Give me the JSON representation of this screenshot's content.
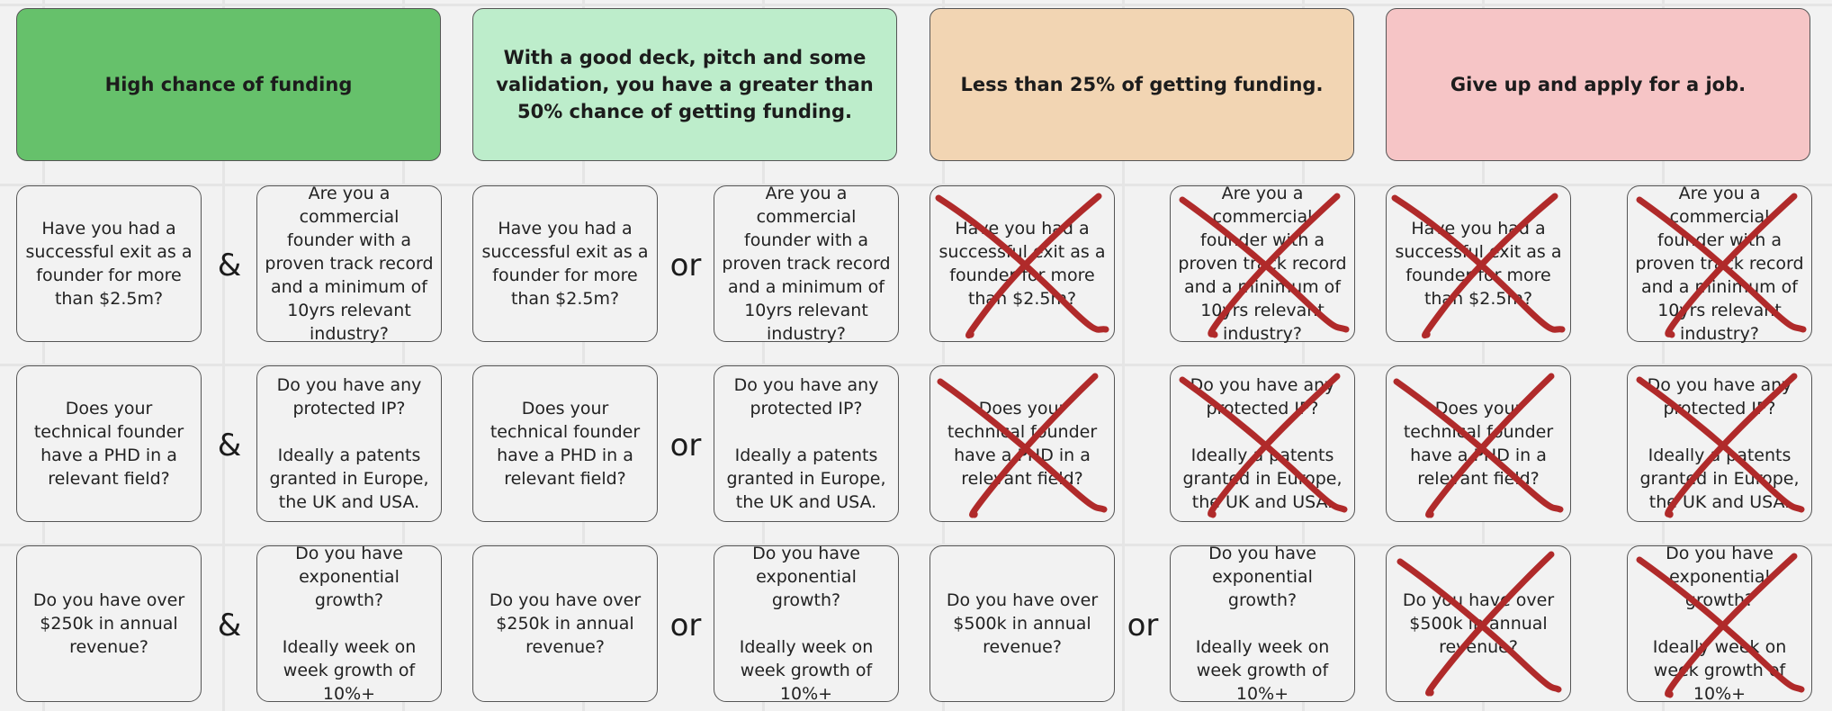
{
  "colors": {
    "col1_header": "#66c16b",
    "col2_header": "#bdedcb",
    "col3_header": "#f2d5b3",
    "col4_header": "#f6c5c6",
    "cross": "#b02a2a",
    "background": "#f2f2f2"
  },
  "columns": [
    {
      "header": "High chance of funding",
      "connector": "&",
      "rows": [
        {
          "left": "Have you had a successful exit as a founder for more than $2.5m?",
          "right": "Are you a commercial founder with a proven track record and a minimum of 10yrs relevant industry?"
        },
        {
          "left": "Does your technical founder have a PHD in a relevant field?",
          "right": "Do you have any protected IP?\n\nIdeally a patents granted in Europe, the UK and USA."
        },
        {
          "left": "Do you have over $250k in annual revenue?",
          "right": "Do you have exponential growth?\n\nIdeally week on week growth of 10%+"
        }
      ]
    },
    {
      "header": "With a good deck, pitch and some validation, you have a greater than 50% chance of getting funding.",
      "connector": "or",
      "rows": [
        {
          "left": "Have you had a successful exit as a founder for more than $2.5m?",
          "right": "Are you a commercial founder with a proven track record and a minimum of 10yrs relevant industry?"
        },
        {
          "left": "Does your technical founder have a PHD in a relevant field?",
          "right": "Do you have any protected IP?\n\nIdeally a patents granted in Europe, the UK and USA."
        },
        {
          "left": "Do you have over $250k in annual revenue?",
          "right": "Do you have exponential growth?\n\nIdeally week on week growth of 10%+"
        }
      ]
    },
    {
      "header": "Less than 25% of getting funding.",
      "connector": "or",
      "rows": [
        {
          "left": "Have you had a successful exit as a founder for more than $2.5m?",
          "right": "Are you a commercial founder with a proven track record and a minimum of 10yrs relevant industry?"
        },
        {
          "left": "Does your technical founder have a PHD in a relevant field?",
          "right": "Do you have any protected IP?\n\nIdeally a patents granted in Europe, the UK and USA."
        },
        {
          "left": "Do you have over $500k in annual revenue?",
          "right": "Do you have exponential growth?\n\nIdeally week on week growth of 10%+"
        }
      ]
    },
    {
      "header": "Give up and apply for a job.",
      "connector": "",
      "rows": [
        {
          "left": "Have you had a successful exit as a founder for more than $2.5m?",
          "right": "Are you a commercial founder with a proven track record and a minimum of 10yrs relevant industry?"
        },
        {
          "left": "Does your technical founder have a PHD in a relevant field?",
          "right": "Do you have any protected IP?\n\nIdeally a patents granted in Europe, the UK and USA."
        },
        {
          "left": "Do you have over $500k in annual revenue?",
          "right": "Do you have exponential growth?\n\nIdeally week on week growth of 10%+"
        }
      ]
    }
  ]
}
